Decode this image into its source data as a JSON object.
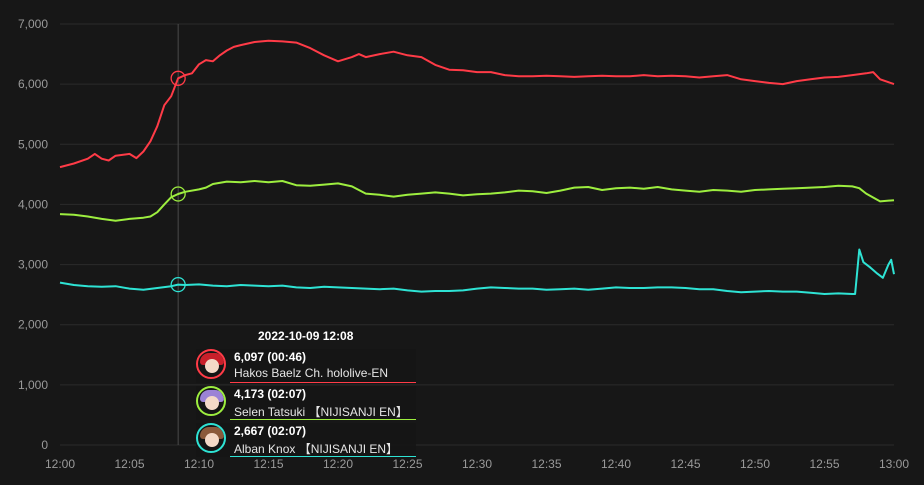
{
  "chart_data": {
    "type": "line",
    "x_start": "12:00",
    "x_end": "13:00",
    "x_ticks": [
      "12:00",
      "12:05",
      "12:10",
      "12:15",
      "12:20",
      "12:25",
      "12:30",
      "12:35",
      "12:40",
      "12:45",
      "12:50",
      "12:55",
      "13:00"
    ],
    "y_ticks": [
      "0",
      "1,000",
      "2,000",
      "3,000",
      "4,000",
      "5,000",
      "6,000",
      "7,000"
    ],
    "ylim": [
      0,
      7000
    ],
    "grid": true,
    "hover_minute": 8.5,
    "series": [
      {
        "name": "Hakos Baelz Ch. hololive-EN",
        "color": "#ff3b47",
        "points": [
          [
            0,
            4620
          ],
          [
            1,
            4680
          ],
          [
            2,
            4760
          ],
          [
            2.5,
            4840
          ],
          [
            3,
            4760
          ],
          [
            3.5,
            4730
          ],
          [
            4,
            4810
          ],
          [
            5,
            4840
          ],
          [
            5.5,
            4770
          ],
          [
            6,
            4880
          ],
          [
            6.5,
            5050
          ],
          [
            7,
            5300
          ],
          [
            7.5,
            5650
          ],
          [
            8,
            5800
          ],
          [
            8.5,
            6097
          ],
          [
            9,
            6150
          ],
          [
            9.5,
            6180
          ],
          [
            10,
            6330
          ],
          [
            10.5,
            6400
          ],
          [
            11,
            6380
          ],
          [
            11.5,
            6480
          ],
          [
            12,
            6560
          ],
          [
            12.5,
            6620
          ],
          [
            13,
            6650
          ],
          [
            14,
            6700
          ],
          [
            15,
            6720
          ],
          [
            16,
            6710
          ],
          [
            17,
            6690
          ],
          [
            18,
            6600
          ],
          [
            19,
            6480
          ],
          [
            20,
            6380
          ],
          [
            21,
            6450
          ],
          [
            21.5,
            6500
          ],
          [
            22,
            6450
          ],
          [
            23,
            6500
          ],
          [
            24,
            6540
          ],
          [
            25,
            6480
          ],
          [
            26,
            6450
          ],
          [
            27,
            6320
          ],
          [
            28,
            6240
          ],
          [
            29,
            6230
          ],
          [
            30,
            6200
          ],
          [
            31,
            6200
          ],
          [
            32,
            6150
          ],
          [
            33,
            6130
          ],
          [
            34,
            6130
          ],
          [
            35,
            6140
          ],
          [
            36,
            6130
          ],
          [
            37,
            6120
          ],
          [
            38,
            6130
          ],
          [
            39,
            6140
          ],
          [
            40,
            6130
          ],
          [
            41,
            6130
          ],
          [
            42,
            6150
          ],
          [
            43,
            6130
          ],
          [
            44,
            6140
          ],
          [
            45,
            6130
          ],
          [
            46,
            6110
          ],
          [
            47,
            6130
          ],
          [
            48,
            6150
          ],
          [
            49,
            6080
          ],
          [
            50,
            6050
          ],
          [
            51,
            6020
          ],
          [
            52,
            6000
          ],
          [
            53,
            6050
          ],
          [
            54,
            6080
          ],
          [
            55,
            6110
          ],
          [
            56,
            6120
          ],
          [
            57,
            6150
          ],
          [
            58,
            6180
          ],
          [
            58.5,
            6200
          ],
          [
            59,
            6080
          ],
          [
            60,
            6000
          ]
        ]
      },
      {
        "name": "Selen Tatsuki 【NIJISANJI EN】",
        "color": "#9dee3f",
        "points": [
          [
            0,
            3840
          ],
          [
            1,
            3830
          ],
          [
            2,
            3800
          ],
          [
            3,
            3760
          ],
          [
            4,
            3730
          ],
          [
            5,
            3760
          ],
          [
            6,
            3780
          ],
          [
            6.5,
            3800
          ],
          [
            7,
            3870
          ],
          [
            7.5,
            4000
          ],
          [
            8,
            4120
          ],
          [
            8.5,
            4173
          ],
          [
            9,
            4210
          ],
          [
            10,
            4250
          ],
          [
            10.5,
            4280
          ],
          [
            11,
            4340
          ],
          [
            12,
            4380
          ],
          [
            13,
            4370
          ],
          [
            14,
            4390
          ],
          [
            15,
            4370
          ],
          [
            16,
            4390
          ],
          [
            17,
            4320
          ],
          [
            18,
            4310
          ],
          [
            19,
            4330
          ],
          [
            20,
            4350
          ],
          [
            21,
            4300
          ],
          [
            22,
            4180
          ],
          [
            23,
            4160
          ],
          [
            24,
            4130
          ],
          [
            25,
            4160
          ],
          [
            26,
            4180
          ],
          [
            27,
            4200
          ],
          [
            28,
            4180
          ],
          [
            29,
            4150
          ],
          [
            30,
            4170
          ],
          [
            31,
            4180
          ],
          [
            32,
            4200
          ],
          [
            33,
            4230
          ],
          [
            34,
            4220
          ],
          [
            35,
            4190
          ],
          [
            36,
            4230
          ],
          [
            37,
            4280
          ],
          [
            38,
            4290
          ],
          [
            39,
            4240
          ],
          [
            40,
            4270
          ],
          [
            41,
            4280
          ],
          [
            42,
            4260
          ],
          [
            43,
            4290
          ],
          [
            44,
            4250
          ],
          [
            45,
            4230
          ],
          [
            46,
            4210
          ],
          [
            47,
            4240
          ],
          [
            48,
            4230
          ],
          [
            49,
            4210
          ],
          [
            50,
            4240
          ],
          [
            51,
            4250
          ],
          [
            52,
            4260
          ],
          [
            53,
            4270
          ],
          [
            54,
            4280
          ],
          [
            55,
            4290
          ],
          [
            56,
            4310
          ],
          [
            57,
            4300
          ],
          [
            57.5,
            4270
          ],
          [
            58,
            4180
          ],
          [
            59,
            4050
          ],
          [
            60,
            4070
          ]
        ]
      },
      {
        "name": "Alban Knox 【NIJISANJI EN】",
        "color": "#2ee3d4",
        "points": [
          [
            0,
            2700
          ],
          [
            1,
            2660
          ],
          [
            2,
            2640
          ],
          [
            3,
            2630
          ],
          [
            4,
            2640
          ],
          [
            5,
            2600
          ],
          [
            6,
            2580
          ],
          [
            7,
            2610
          ],
          [
            8,
            2640
          ],
          [
            8.5,
            2667
          ],
          [
            9,
            2660
          ],
          [
            10,
            2670
          ],
          [
            11,
            2650
          ],
          [
            12,
            2640
          ],
          [
            13,
            2660
          ],
          [
            14,
            2650
          ],
          [
            15,
            2640
          ],
          [
            16,
            2650
          ],
          [
            17,
            2620
          ],
          [
            18,
            2610
          ],
          [
            19,
            2630
          ],
          [
            20,
            2620
          ],
          [
            21,
            2610
          ],
          [
            22,
            2600
          ],
          [
            23,
            2590
          ],
          [
            24,
            2600
          ],
          [
            25,
            2570
          ],
          [
            26,
            2550
          ],
          [
            27,
            2560
          ],
          [
            28,
            2560
          ],
          [
            29,
            2570
          ],
          [
            30,
            2600
          ],
          [
            31,
            2620
          ],
          [
            32,
            2610
          ],
          [
            33,
            2600
          ],
          [
            34,
            2600
          ],
          [
            35,
            2580
          ],
          [
            36,
            2590
          ],
          [
            37,
            2600
          ],
          [
            38,
            2580
          ],
          [
            39,
            2600
          ],
          [
            40,
            2620
          ],
          [
            41,
            2610
          ],
          [
            42,
            2610
          ],
          [
            43,
            2620
          ],
          [
            44,
            2620
          ],
          [
            45,
            2610
          ],
          [
            46,
            2590
          ],
          [
            47,
            2590
          ],
          [
            48,
            2560
          ],
          [
            49,
            2540
          ],
          [
            50,
            2550
          ],
          [
            51,
            2560
          ],
          [
            52,
            2550
          ],
          [
            53,
            2550
          ],
          [
            54,
            2530
          ],
          [
            55,
            2510
          ],
          [
            56,
            2520
          ],
          [
            57,
            2510
          ],
          [
            57.2,
            2510
          ],
          [
            57.5,
            3250
          ],
          [
            57.8,
            3040
          ],
          [
            58.3,
            2950
          ],
          [
            58.8,
            2850
          ],
          [
            59.2,
            2780
          ],
          [
            59.6,
            3000
          ],
          [
            59.8,
            3080
          ],
          [
            60,
            2840
          ]
        ]
      }
    ]
  },
  "tooltip": {
    "time": "2022-10-09 12:08",
    "items": [
      {
        "value": "6,097 (00:46)",
        "name": "Hakos Baelz Ch. hololive-EN",
        "color": "#ff3b47",
        "hair": "#c81f2a"
      },
      {
        "value": "4,173 (02:07)",
        "name": "Selen Tatsuki 【NIJISANJI EN】",
        "color": "#9dee3f",
        "hair": "#9b83d6"
      },
      {
        "value": "2,667 (02:07)",
        "name": "Alban Knox 【NIJISANJI EN】",
        "color": "#2ee3d4",
        "hair": "#8b5a3c"
      }
    ]
  }
}
